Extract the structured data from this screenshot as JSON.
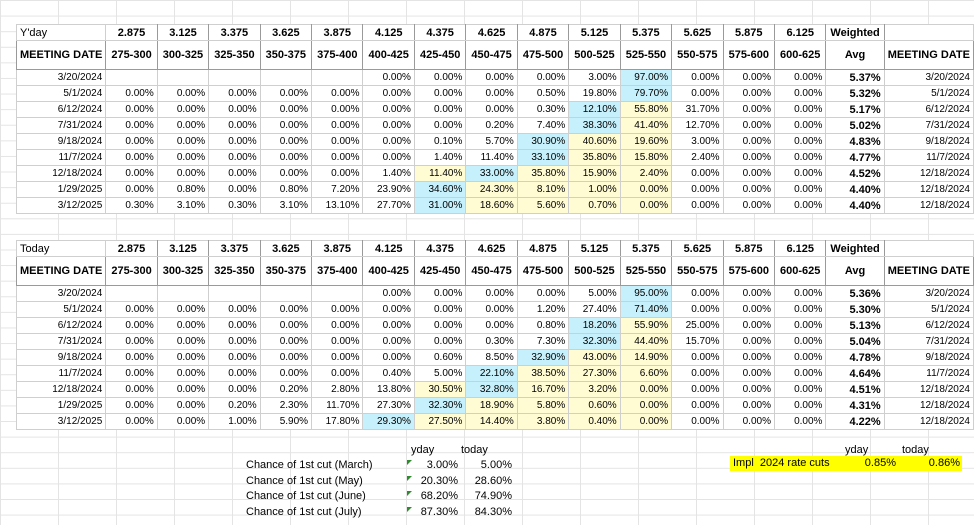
{
  "yday": {
    "label": "Y'day",
    "rates": [
      "2.875",
      "3.125",
      "3.375",
      "3.625",
      "3.875",
      "4.125",
      "4.375",
      "4.625",
      "4.875",
      "5.125",
      "5.375",
      "5.625",
      "5.875",
      "6.125"
    ],
    "weighted": "Weighted",
    "meeting_date": "MEETING DATE",
    "ranges": [
      "275-300",
      "300-325",
      "325-350",
      "350-375",
      "375-400",
      "400-425",
      "425-450",
      "450-475",
      "475-500",
      "500-525",
      "525-550",
      "550-575",
      "575-600",
      "600-625"
    ],
    "avg": "Avg",
    "rows": [
      {
        "date": "3/20/2024",
        "vals": [
          "",
          "",
          "",
          "",
          "",
          "0.00%",
          "0.00%",
          "0.00%",
          "0.00%",
          "3.00%",
          "97.00%",
          "0.00%",
          "0.00%",
          "0.00%"
        ],
        "avg": "5.37%",
        "right": "3/20/2024",
        "hl": {
          "10": "blue"
        }
      },
      {
        "date": "5/1/2024",
        "vals": [
          "0.00%",
          "0.00%",
          "0.00%",
          "0.00%",
          "0.00%",
          "0.00%",
          "0.00%",
          "0.00%",
          "0.50%",
          "19.80%",
          "79.70%",
          "0.00%",
          "0.00%",
          "0.00%"
        ],
        "avg": "5.32%",
        "right": "5/1/2024",
        "hl": {
          "10": "blue"
        }
      },
      {
        "date": "6/12/2024",
        "vals": [
          "0.00%",
          "0.00%",
          "0.00%",
          "0.00%",
          "0.00%",
          "0.00%",
          "0.00%",
          "0.00%",
          "0.30%",
          "12.10%",
          "55.80%",
          "31.70%",
          "0.00%",
          "0.00%"
        ],
        "avg": "5.17%",
        "right": "6/12/2024",
        "hl": {
          "9": "blue",
          "10": "yel"
        }
      },
      {
        "date": "7/31/2024",
        "vals": [
          "0.00%",
          "0.00%",
          "0.00%",
          "0.00%",
          "0.00%",
          "0.00%",
          "0.00%",
          "0.20%",
          "7.40%",
          "38.30%",
          "41.40%",
          "12.70%",
          "0.00%",
          "0.00%"
        ],
        "avg": "5.02%",
        "right": "7/31/2024",
        "hl": {
          "9": "blue",
          "10": "yel"
        }
      },
      {
        "date": "9/18/2024",
        "vals": [
          "0.00%",
          "0.00%",
          "0.00%",
          "0.00%",
          "0.00%",
          "0.00%",
          "0.10%",
          "5.70%",
          "30.90%",
          "40.60%",
          "19.60%",
          "3.00%",
          "0.00%",
          "0.00%"
        ],
        "avg": "4.83%",
        "right": "9/18/2024",
        "hl": {
          "8": "blue",
          "9": "yel",
          "10": "yel"
        }
      },
      {
        "date": "11/7/2024",
        "vals": [
          "0.00%",
          "0.00%",
          "0.00%",
          "0.00%",
          "0.00%",
          "0.00%",
          "1.40%",
          "11.40%",
          "33.10%",
          "35.80%",
          "15.80%",
          "2.40%",
          "0.00%",
          "0.00%"
        ],
        "avg": "4.77%",
        "right": "11/7/2024",
        "hl": {
          "8": "blue",
          "9": "yel",
          "10": "yel"
        }
      },
      {
        "date": "12/18/2024",
        "vals": [
          "0.00%",
          "0.00%",
          "0.00%",
          "0.00%",
          "0.00%",
          "1.40%",
          "11.40%",
          "33.00%",
          "35.80%",
          "15.90%",
          "2.40%",
          "0.00%",
          "0.00%",
          "0.00%"
        ],
        "avg": "4.52%",
        "right": "12/18/2024",
        "hl": {
          "6": "yel",
          "7": "blue",
          "8": "yel",
          "9": "yel",
          "10": "yel"
        }
      },
      {
        "date": "1/29/2025",
        "vals": [
          "0.00%",
          "0.80%",
          "0.00%",
          "0.80%",
          "7.20%",
          "23.90%",
          "34.60%",
          "24.30%",
          "8.10%",
          "1.00%",
          "0.00%",
          "0.00%",
          "0.00%",
          "0.00%"
        ],
        "avg": "4.40%",
        "right": "12/18/2024",
        "hl": {
          "6": "blue",
          "7": "yel",
          "8": "yel",
          "9": "yel",
          "10": "yel"
        }
      },
      {
        "date": "3/12/2025",
        "vals": [
          "0.30%",
          "3.10%",
          "0.30%",
          "3.10%",
          "13.10%",
          "27.70%",
          "31.00%",
          "18.60%",
          "5.60%",
          "0.70%",
          "0.00%",
          "0.00%",
          "0.00%",
          "0.00%"
        ],
        "avg": "4.40%",
        "right": "12/18/2024",
        "hl": {
          "6": "blue",
          "7": "yel",
          "8": "yel",
          "9": "yel",
          "10": "yel"
        }
      }
    ]
  },
  "today": {
    "label": "Today",
    "rates": [
      "2.875",
      "3.125",
      "3.375",
      "3.625",
      "3.875",
      "4.125",
      "4.375",
      "4.625",
      "4.875",
      "5.125",
      "5.375",
      "5.625",
      "5.875",
      "6.125"
    ],
    "weighted": "Weighted",
    "meeting_date": "MEETING DATE",
    "ranges": [
      "275-300",
      "300-325",
      "325-350",
      "350-375",
      "375-400",
      "400-425",
      "425-450",
      "450-475",
      "475-500",
      "500-525",
      "525-550",
      "550-575",
      "575-600",
      "600-625"
    ],
    "avg": "Avg",
    "rows": [
      {
        "date": "3/20/2024",
        "vals": [
          "",
          "",
          "",
          "",
          "",
          "0.00%",
          "0.00%",
          "0.00%",
          "0.00%",
          "5.00%",
          "95.00%",
          "0.00%",
          "0.00%",
          "0.00%"
        ],
        "avg": "5.36%",
        "right": "3/20/2024",
        "hl": {
          "10": "blue"
        }
      },
      {
        "date": "5/1/2024",
        "vals": [
          "0.00%",
          "0.00%",
          "0.00%",
          "0.00%",
          "0.00%",
          "0.00%",
          "0.00%",
          "0.00%",
          "1.20%",
          "27.40%",
          "71.40%",
          "0.00%",
          "0.00%",
          "0.00%"
        ],
        "avg": "5.30%",
        "right": "5/1/2024",
        "hl": {
          "10": "blue"
        }
      },
      {
        "date": "6/12/2024",
        "vals": [
          "0.00%",
          "0.00%",
          "0.00%",
          "0.00%",
          "0.00%",
          "0.00%",
          "0.00%",
          "0.00%",
          "0.80%",
          "18.20%",
          "55.90%",
          "25.00%",
          "0.00%",
          "0.00%"
        ],
        "avg": "5.13%",
        "right": "6/12/2024",
        "hl": {
          "9": "blue",
          "10": "yel"
        }
      },
      {
        "date": "7/31/2024",
        "vals": [
          "0.00%",
          "0.00%",
          "0.00%",
          "0.00%",
          "0.00%",
          "0.00%",
          "0.00%",
          "0.30%",
          "7.30%",
          "32.30%",
          "44.40%",
          "15.70%",
          "0.00%",
          "0.00%"
        ],
        "avg": "5.04%",
        "right": "7/31/2024",
        "hl": {
          "9": "blue",
          "10": "yel"
        }
      },
      {
        "date": "9/18/2024",
        "vals": [
          "0.00%",
          "0.00%",
          "0.00%",
          "0.00%",
          "0.00%",
          "0.00%",
          "0.60%",
          "8.50%",
          "32.90%",
          "43.00%",
          "14.90%",
          "0.00%",
          "0.00%",
          "0.00%"
        ],
        "avg": "4.78%",
        "right": "9/18/2024",
        "hl": {
          "8": "blue",
          "9": "yel",
          "10": "yel"
        }
      },
      {
        "date": "11/7/2024",
        "vals": [
          "0.00%",
          "0.00%",
          "0.00%",
          "0.00%",
          "0.00%",
          "0.40%",
          "5.00%",
          "22.10%",
          "38.50%",
          "27.30%",
          "6.60%",
          "0.00%",
          "0.00%",
          "0.00%"
        ],
        "avg": "4.64%",
        "right": "11/7/2024",
        "hl": {
          "7": "blue",
          "8": "yel",
          "9": "yel",
          "10": "yel"
        }
      },
      {
        "date": "12/18/2024",
        "vals": [
          "0.00%",
          "0.00%",
          "0.00%",
          "0.20%",
          "2.80%",
          "13.80%",
          "30.50%",
          "32.80%",
          "16.70%",
          "3.20%",
          "0.00%",
          "0.00%",
          "0.00%",
          "0.00%"
        ],
        "avg": "4.51%",
        "right": "12/18/2024",
        "hl": {
          "6": "yel",
          "7": "blue",
          "8": "yel",
          "9": "yel",
          "10": "yel"
        }
      },
      {
        "date": "1/29/2025",
        "vals": [
          "0.00%",
          "0.00%",
          "0.20%",
          "2.30%",
          "11.70%",
          "27.30%",
          "32.30%",
          "18.90%",
          "5.80%",
          "0.60%",
          "0.00%",
          "0.00%",
          "0.00%",
          "0.00%"
        ],
        "avg": "4.31%",
        "right": "12/18/2024",
        "hl": {
          "6": "blue",
          "7": "yel",
          "8": "yel",
          "9": "yel",
          "10": "yel"
        }
      },
      {
        "date": "3/12/2025",
        "vals": [
          "0.00%",
          "0.00%",
          "1.00%",
          "5.90%",
          "17.80%",
          "29.30%",
          "27.50%",
          "14.40%",
          "3.80%",
          "0.40%",
          "0.00%",
          "0.00%",
          "0.00%",
          "0.00%"
        ],
        "avg": "4.22%",
        "right": "12/18/2024",
        "hl": {
          "5": "blue",
          "6": "yel",
          "7": "yel",
          "8": "yel",
          "9": "yel",
          "10": "yel"
        }
      }
    ]
  },
  "cuts": {
    "head_yday": "yday",
    "head_today": "today",
    "rows": [
      {
        "label": "Chance of 1st cut (March)",
        "yday": "3.00%",
        "today": "5.00%"
      },
      {
        "label": "Chance of 1st cut (May)",
        "yday": "20.30%",
        "today": "28.60%"
      },
      {
        "label": "Chance of 1st cut (June)",
        "yday": "68.20%",
        "today": "74.90%"
      },
      {
        "label": "Chance of 1st cut (July)",
        "yday": "87.30%",
        "today": "84.30%"
      }
    ]
  },
  "impl": {
    "head_yday": "yday",
    "head_today": "today",
    "label": "Impl  2024 rate cuts",
    "yday": "0.85%",
    "today": "0.86%"
  },
  "colors": {
    "highlight_blue": "#c6f0fb",
    "highlight_yellow": "#fffbd2",
    "impl_bg": "#ffff00",
    "comment_marker": "#2e8b2e"
  }
}
